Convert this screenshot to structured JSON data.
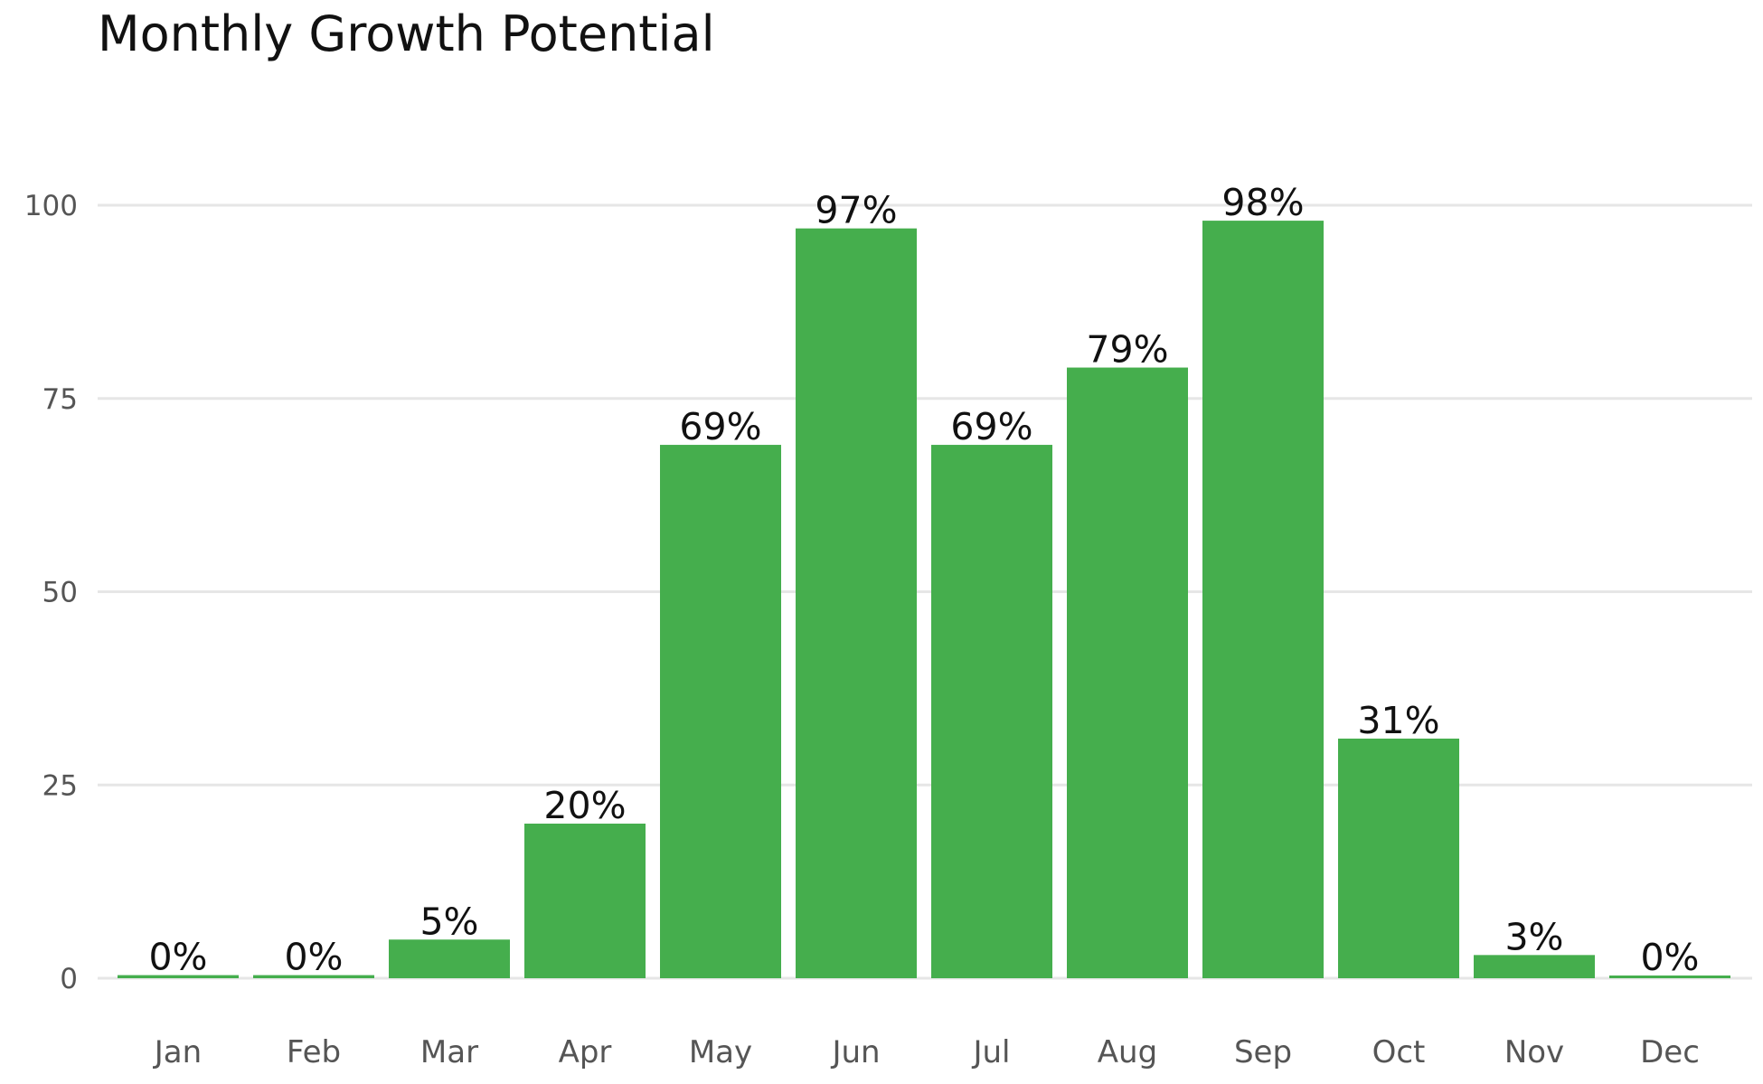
{
  "chart_data": {
    "type": "bar",
    "title": "Monthly Growth Potential",
    "xlabel": "",
    "ylabel": "",
    "categories": [
      "Jan",
      "Feb",
      "Mar",
      "Apr",
      "May",
      "Jun",
      "Jul",
      "Aug",
      "Sep",
      "Oct",
      "Nov",
      "Dec"
    ],
    "values": [
      0.4,
      0.4,
      5,
      20,
      69,
      97,
      69,
      79,
      98,
      31,
      3,
      0.3
    ],
    "data_labels": [
      "0%",
      "0%",
      "5%",
      "20%",
      "69%",
      "97%",
      "69%",
      "79%",
      "98%",
      "31%",
      "3%",
      "0%"
    ],
    "yticks": [
      0,
      25,
      50,
      75,
      100
    ],
    "ylim": [
      0,
      100
    ],
    "grid": true,
    "legend": "none",
    "bar_color": "#45ae4d"
  }
}
